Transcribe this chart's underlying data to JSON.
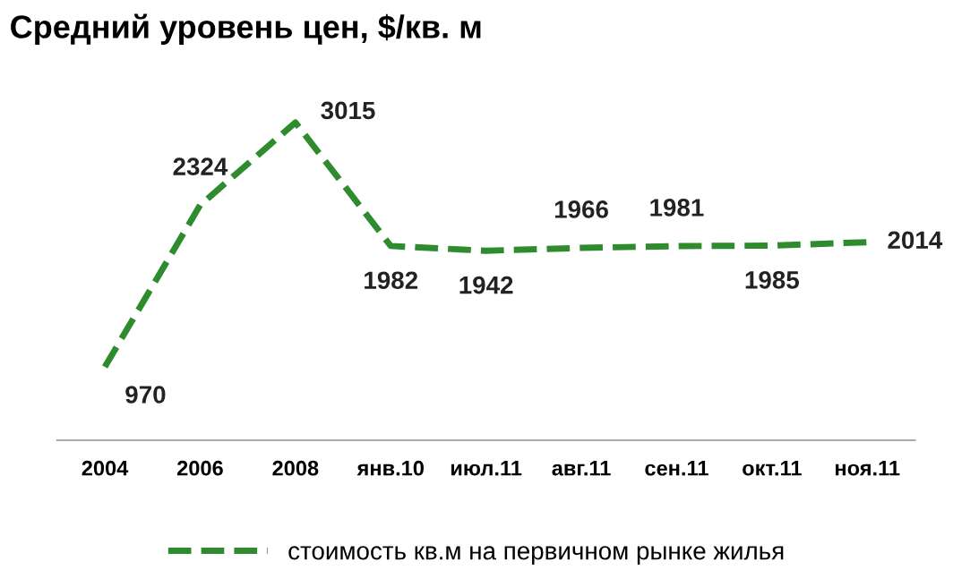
{
  "chart_data": {
    "type": "line",
    "title": "Средний уровень цен, $/кв. м",
    "categories": [
      "2004",
      "2006",
      "2008",
      "янв.10",
      "июл.11",
      "авг.11",
      "сен.11",
      "окт.11",
      "ноя.11"
    ],
    "series": [
      {
        "name": "стоимость кв.м на первичном рынке жилья",
        "color": "#2e8b2e",
        "values": [
          970,
          2324,
          3015,
          1982,
          1942,
          1966,
          1981,
          1985,
          2014
        ]
      }
    ],
    "data_labels": true,
    "line_style": "dashed",
    "marker": "none",
    "legend": "bottom",
    "grid": false
  }
}
